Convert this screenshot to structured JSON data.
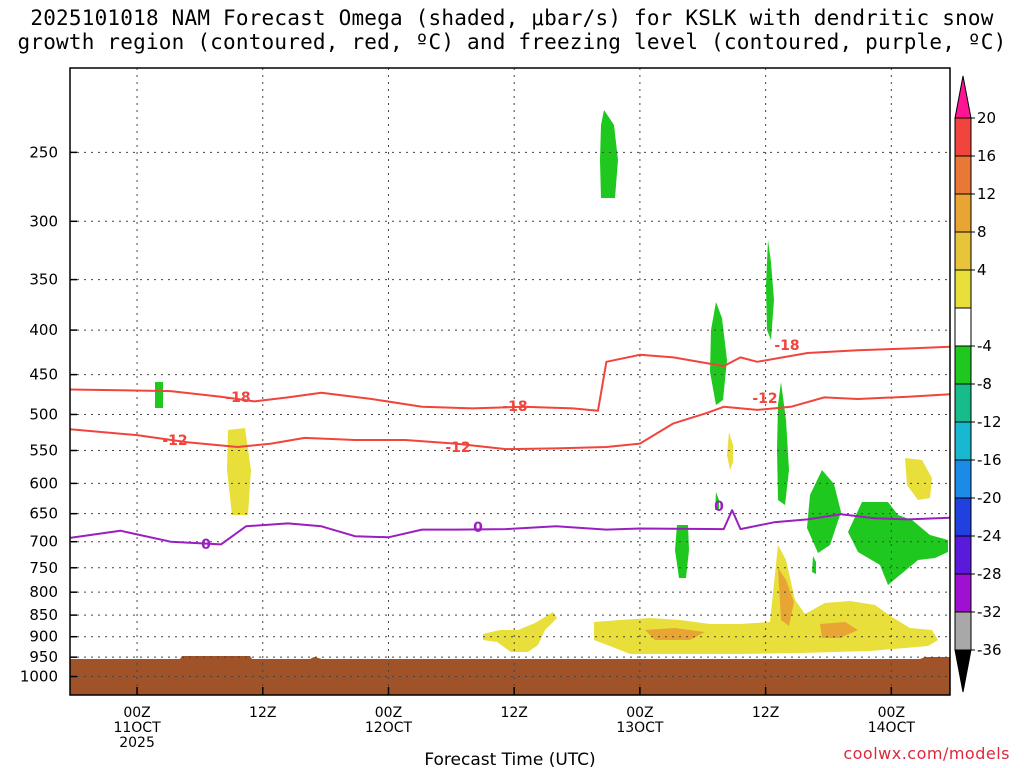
{
  "title": {
    "line1": "2025101018 NAM Forecast Omega (shaded, μbar/s) for KSLK with dendritic snow",
    "line2": "growth region (contoured, red, ºC) and freezing level (contoured, purple, ºC)"
  },
  "credit": "coolwx.com/models",
  "colors": {
    "dgz": "#f0443c",
    "freezing": "#9b1fbf",
    "ground": "#a05228",
    "green": "#1ec81e",
    "yellow": "#e8df3a",
    "orange": "#e8a534"
  },
  "chart_data": {
    "type": "heatmap",
    "title": "2025101018 NAM Forecast Omega (shaded, μbar/s) for KSLK with dendritic snow growth region (contoured, red, ºC) and freezing level (contoured, purple, ºC)",
    "xlabel": "Forecast Time (UTC)",
    "ylabel": "",
    "y_log_scale": true,
    "y_inverted": true,
    "xlim_hours": [
      -8,
      97
    ],
    "ylim_hpa": [
      1050,
      200
    ],
    "grid": true,
    "y_ticks": [
      250,
      300,
      350,
      400,
      450,
      500,
      550,
      600,
      650,
      700,
      750,
      800,
      850,
      900,
      950,
      1000
    ],
    "x_ticks": [
      {
        "hour": 0,
        "label": "00Z",
        "sub1": "11OCT",
        "sub2": "2025"
      },
      {
        "hour": 15,
        "label": "12Z",
        "sub1": "",
        "sub2": ""
      },
      {
        "hour": 30,
        "label": "00Z",
        "sub1": "12OCT",
        "sub2": ""
      },
      {
        "hour": 45,
        "label": "12Z",
        "sub1": "",
        "sub2": ""
      },
      {
        "hour": 60,
        "label": "00Z",
        "sub1": "13OCT",
        "sub2": ""
      },
      {
        "hour": 75,
        "label": "12Z",
        "sub1": "",
        "sub2": ""
      },
      {
        "hour": 90,
        "label": "00Z",
        "sub1": "14OCT",
        "sub2": ""
      }
    ],
    "colorbar": {
      "labels": [
        "20",
        "16",
        "12",
        "8",
        "4",
        "-4",
        "-8",
        "-12",
        "-16",
        "-20",
        "-24",
        "-28",
        "-32",
        "-36"
      ],
      "colors": [
        "#ff1493",
        "#f0443c",
        "#e87834",
        "#e8a534",
        "#e8c43a",
        "#e8df3a",
        "#ffffff",
        "#1ec81e",
        "#18bc8a",
        "#19b8d0",
        "#1a8ce8",
        "#2040e0",
        "#5a1adc",
        "#a010d0",
        "#a8a8a8",
        "#000000"
      ]
    },
    "series": [
      {
        "name": "-18",
        "color": "#f0443c",
        "points": [
          [
            -8,
            468
          ],
          [
            4,
            470
          ],
          [
            10,
            477
          ],
          [
            14,
            483
          ],
          [
            18,
            478
          ],
          [
            22,
            472
          ],
          [
            28,
            480
          ],
          [
            34,
            490
          ],
          [
            40,
            492
          ],
          [
            46,
            490
          ],
          [
            52,
            492
          ],
          [
            55,
            495
          ],
          [
            56,
            435
          ],
          [
            60,
            427
          ],
          [
            64,
            430
          ],
          [
            70,
            440
          ],
          [
            72,
            430
          ],
          [
            74,
            435
          ],
          [
            80,
            425
          ],
          [
            86,
            422
          ],
          [
            92,
            420
          ],
          [
            97,
            418
          ]
        ]
      },
      {
        "name": "-12",
        "color": "#f0443c",
        "points": [
          [
            -8,
            520
          ],
          [
            0,
            528
          ],
          [
            6,
            538
          ],
          [
            12,
            545
          ],
          [
            16,
            540
          ],
          [
            20,
            532
          ],
          [
            26,
            535
          ],
          [
            32,
            535
          ],
          [
            38,
            540
          ],
          [
            44,
            548
          ],
          [
            50,
            547
          ],
          [
            56,
            545
          ],
          [
            60,
            540
          ],
          [
            64,
            512
          ],
          [
            68,
            498
          ],
          [
            70,
            490
          ],
          [
            74,
            494
          ],
          [
            78,
            490
          ],
          [
            82,
            478
          ],
          [
            86,
            480
          ],
          [
            92,
            477
          ],
          [
            97,
            474
          ]
        ]
      },
      {
        "name": "0",
        "color": "#9b1fbf",
        "points": [
          [
            -8,
            693
          ],
          [
            -2,
            680
          ],
          [
            4,
            700
          ],
          [
            10,
            705
          ],
          [
            13,
            672
          ],
          [
            18,
            667
          ],
          [
            22,
            672
          ],
          [
            26,
            690
          ],
          [
            30,
            692
          ],
          [
            34,
            678
          ],
          [
            38,
            678
          ],
          [
            44,
            677
          ],
          [
            50,
            672
          ],
          [
            56,
            678
          ],
          [
            60,
            676
          ],
          [
            70,
            677
          ],
          [
            71,
            644
          ],
          [
            72,
            677
          ],
          [
            76,
            665
          ],
          [
            80,
            660
          ],
          [
            84,
            651
          ],
          [
            88,
            658
          ],
          [
            92,
            660
          ],
          [
            97,
            657
          ]
        ]
      }
    ],
    "annotations": [
      "-18",
      "-18",
      "-18",
      "-12",
      "-12",
      "-12",
      "0",
      "0",
      "0"
    ]
  }
}
